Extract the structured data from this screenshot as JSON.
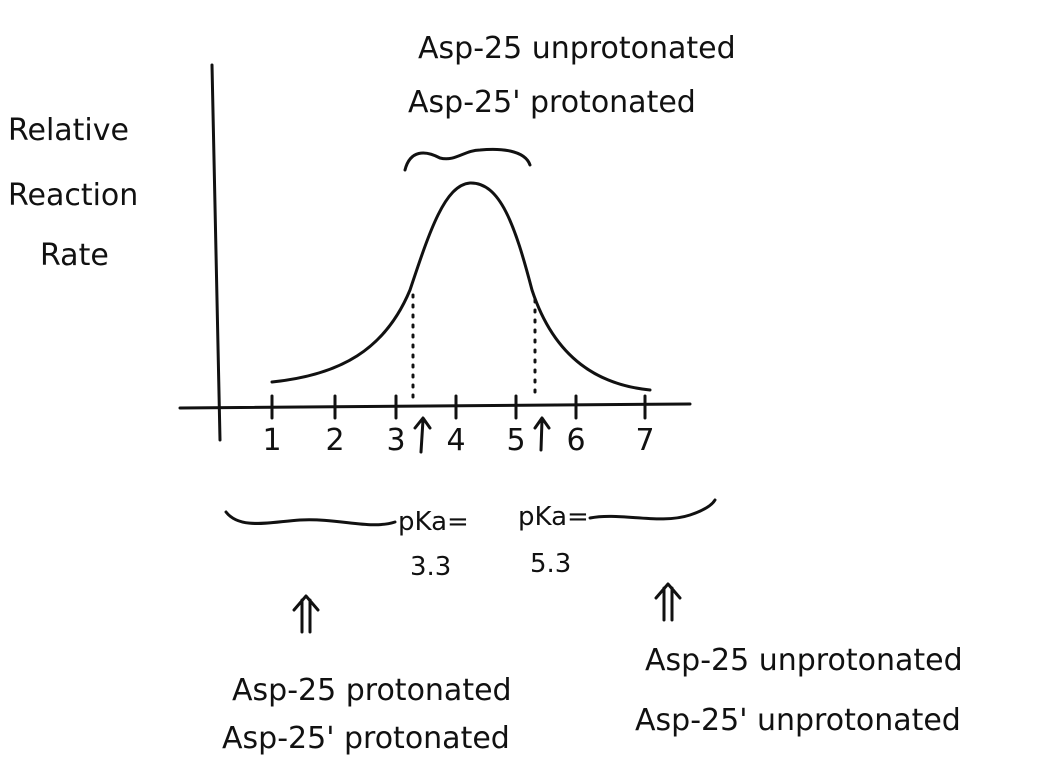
{
  "axis_label": [
    "Relative",
    "Reaction",
    "Rate"
  ],
  "x_ticks": [
    1,
    2,
    3,
    4,
    5,
    6,
    7
  ],
  "pka_labels": [
    {
      "label": "pKa=",
      "value": "3.3"
    },
    {
      "label": "pKa=",
      "value": "5.3"
    }
  ],
  "peak_label": [
    "Asp-25 unprotonated",
    "Asp-25' protonated"
  ],
  "low_ph_label": [
    "Asp-25 protonated",
    "Asp-25' protonated"
  ],
  "high_ph_label": [
    "Asp-25 unprotonated",
    "Asp-25' unprotonated"
  ]
}
